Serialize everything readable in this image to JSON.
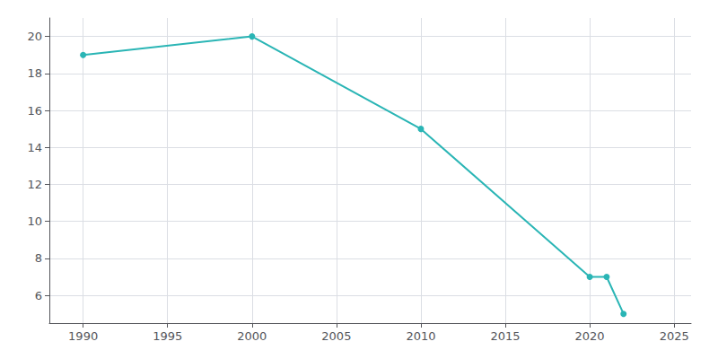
{
  "chart_data": {
    "type": "line",
    "x": [
      1990,
      2000,
      2010,
      2020,
      2021,
      2022
    ],
    "values": [
      19,
      20,
      15,
      7,
      7,
      5
    ],
    "color": "#2ab5b5",
    "marker": "circle",
    "xlim": [
      1988,
      2026
    ],
    "xticks": [
      1990,
      1995,
      2000,
      2005,
      2010,
      2015,
      2020,
      2025
    ],
    "ylim": [
      4.5,
      21
    ],
    "yticks": [
      6,
      8,
      10,
      12,
      14,
      16,
      18,
      20
    ],
    "grid": true
  }
}
